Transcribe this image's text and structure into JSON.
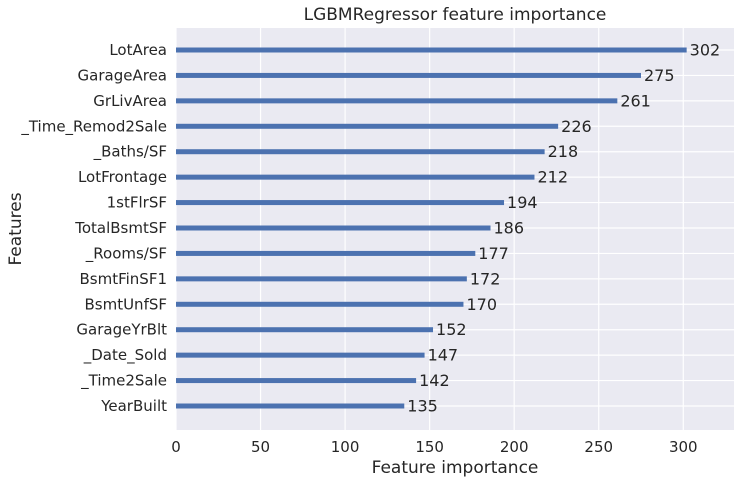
{
  "chart_data": {
    "type": "bar",
    "orientation": "horizontal",
    "title": "LGBMRegressor feature importance",
    "xlabel": "Feature importance",
    "ylabel": "Features",
    "xlim": [
      0,
      330
    ],
    "xticks": [
      0,
      50,
      100,
      150,
      200,
      250,
      300
    ],
    "grid": true,
    "categories": [
      "LotArea",
      "GarageArea",
      "GrLivArea",
      "_Time_Remod2Sale",
      "_Baths/SF",
      "LotFrontage",
      "1stFlrSF",
      "TotalBsmtSF",
      "_Rooms/SF",
      "BsmtFinSF1",
      "BsmtUnfSF",
      "GarageYrBlt",
      "_Date_Sold",
      "_Time2Sale",
      "YearBuilt"
    ],
    "values": [
      302,
      275,
      261,
      226,
      218,
      212,
      194,
      186,
      177,
      172,
      170,
      152,
      147,
      142,
      135
    ],
    "colors": {
      "bar": "#4c72b0",
      "plot_background": "#eaeaf2",
      "grid": "#ffffff",
      "text": "#262626"
    }
  }
}
